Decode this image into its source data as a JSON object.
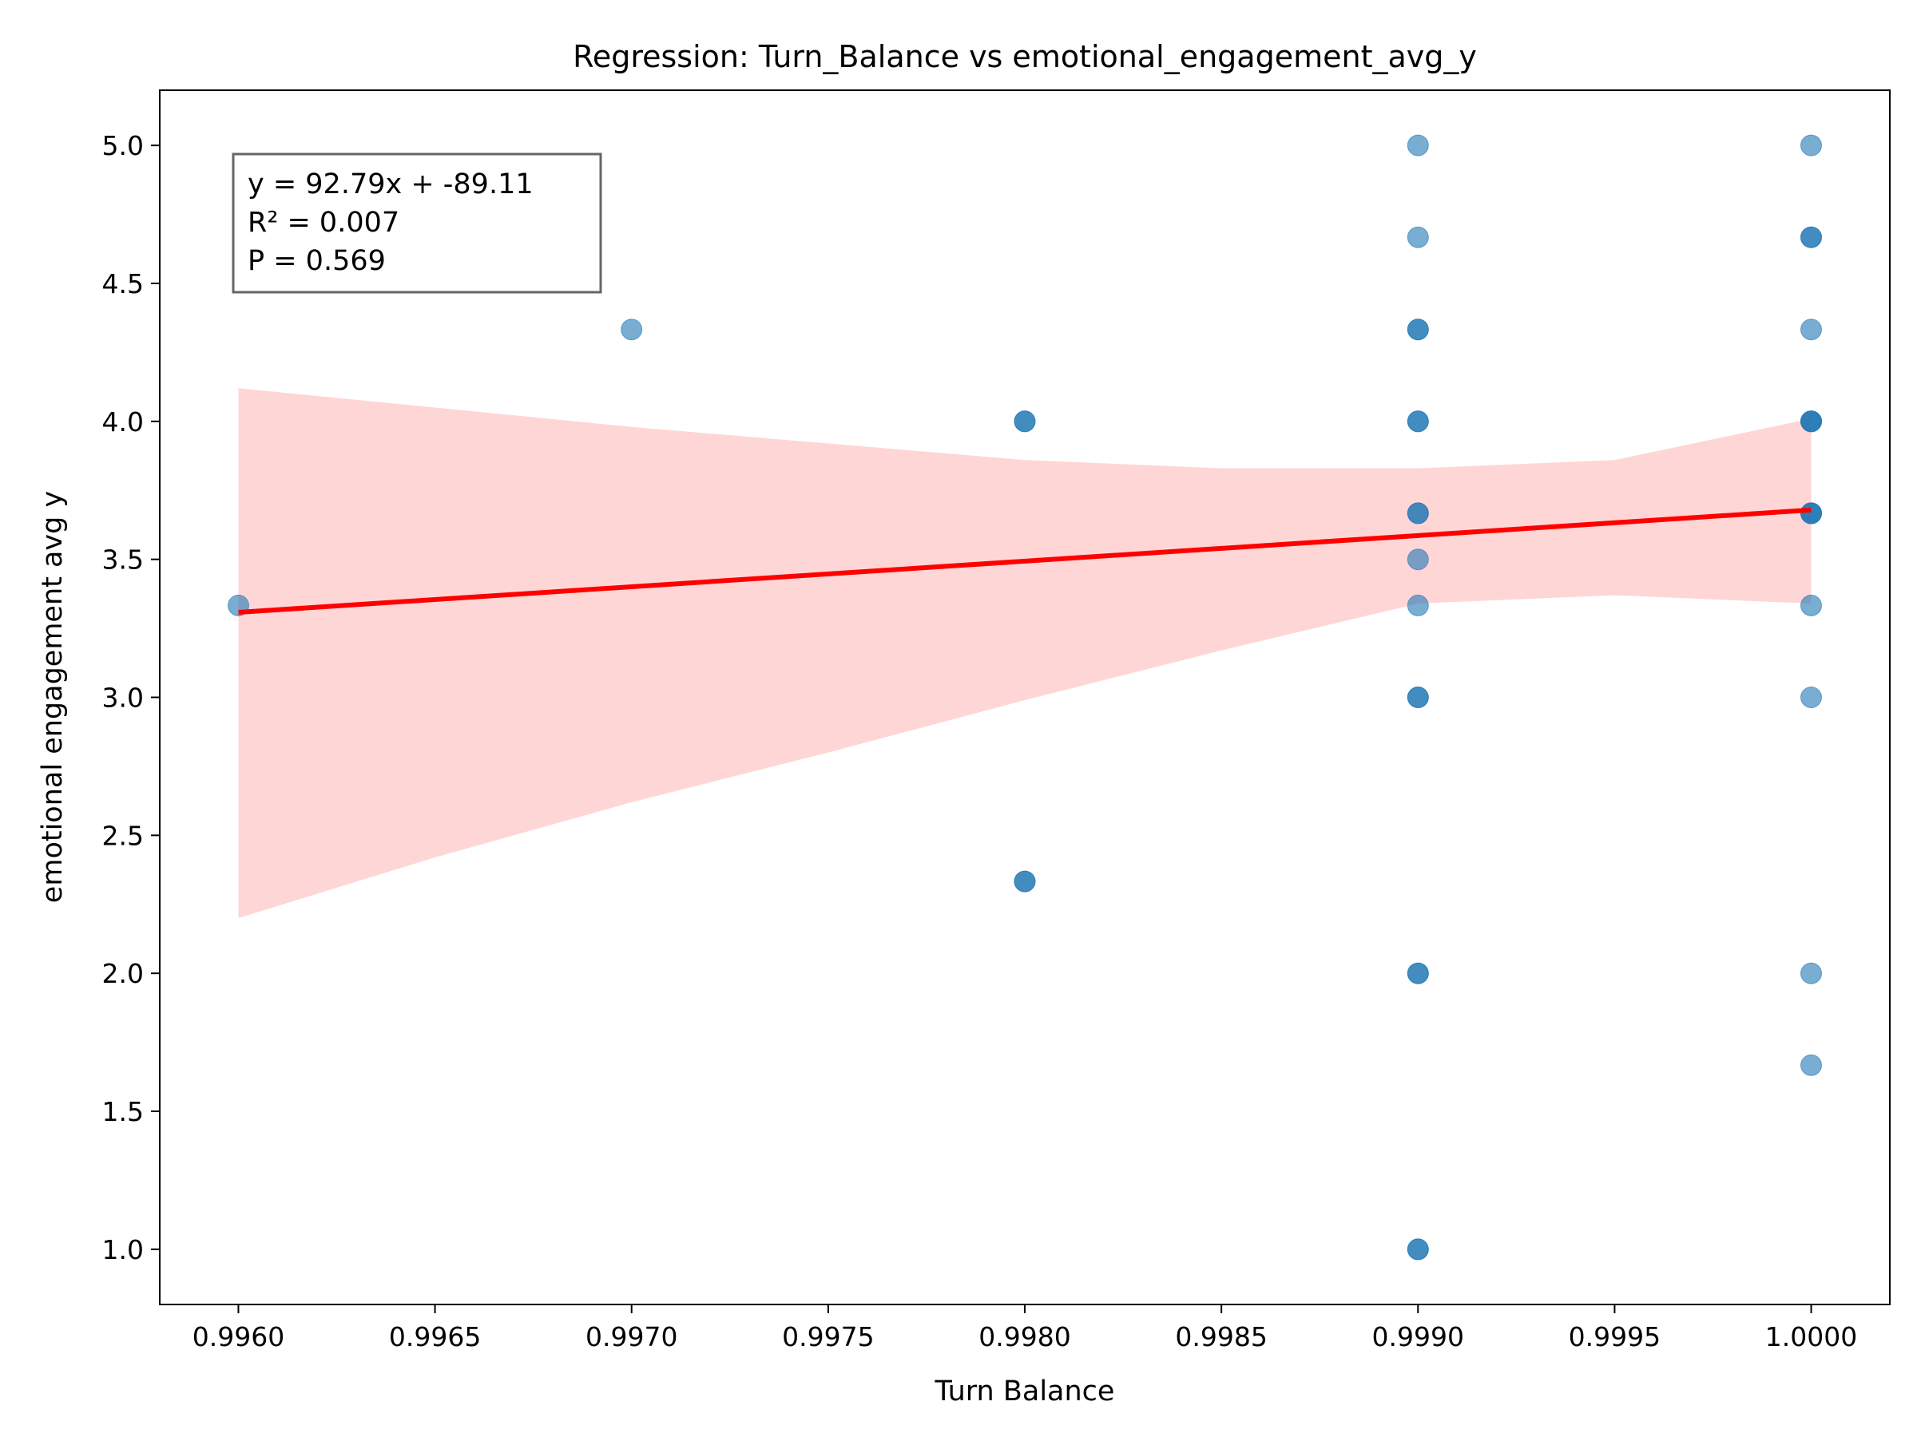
{
  "chart_data": {
    "type": "scatter",
    "title": "Regression: Turn_Balance vs emotional_engagement_avg_y",
    "xlabel": "Turn Balance",
    "ylabel": "emotional engagement avg y",
    "xlim": [
      0.9958,
      1.0002
    ],
    "ylim": [
      0.8,
      5.2
    ],
    "x_ticks": [
      "0.9960",
      "0.9965",
      "0.9970",
      "0.9975",
      "0.9980",
      "0.9985",
      "0.9990",
      "0.9995",
      "1.0000"
    ],
    "y_ticks": [
      "1.0",
      "1.5",
      "2.0",
      "2.5",
      "3.0",
      "3.5",
      "4.0",
      "4.5",
      "5.0"
    ],
    "grid": false,
    "annotation": {
      "lines": [
        "y = 92.79x + -89.11",
        "R² = 0.007",
        "P = 0.569"
      ]
    },
    "points": [
      {
        "x": 0.996,
        "y": 3.333
      },
      {
        "x": 0.997,
        "y": 4.333
      },
      {
        "x": 0.998,
        "y": 4.0
      },
      {
        "x": 0.998,
        "y": 4.0
      },
      {
        "x": 0.998,
        "y": 2.333
      },
      {
        "x": 0.998,
        "y": 2.333
      },
      {
        "x": 0.999,
        "y": 5.0
      },
      {
        "x": 0.999,
        "y": 4.667
      },
      {
        "x": 0.999,
        "y": 4.333
      },
      {
        "x": 0.999,
        "y": 4.333
      },
      {
        "x": 0.999,
        "y": 4.0
      },
      {
        "x": 0.999,
        "y": 4.0
      },
      {
        "x": 0.999,
        "y": 3.667
      },
      {
        "x": 0.999,
        "y": 3.667
      },
      {
        "x": 0.999,
        "y": 3.5
      },
      {
        "x": 0.999,
        "y": 3.333
      },
      {
        "x": 0.999,
        "y": 3.0
      },
      {
        "x": 0.999,
        "y": 3.0
      },
      {
        "x": 0.999,
        "y": 2.0
      },
      {
        "x": 0.999,
        "y": 2.0
      },
      {
        "x": 0.999,
        "y": 1.0
      },
      {
        "x": 0.999,
        "y": 1.0
      },
      {
        "x": 1.0,
        "y": 5.0
      },
      {
        "x": 1.0,
        "y": 4.667
      },
      {
        "x": 1.0,
        "y": 4.667
      },
      {
        "x": 1.0,
        "y": 4.333
      },
      {
        "x": 1.0,
        "y": 4.0
      },
      {
        "x": 1.0,
        "y": 4.0
      },
      {
        "x": 1.0,
        "y": 4.0
      },
      {
        "x": 1.0,
        "y": 3.667
      },
      {
        "x": 1.0,
        "y": 3.667
      },
      {
        "x": 1.0,
        "y": 3.667
      },
      {
        "x": 1.0,
        "y": 3.333
      },
      {
        "x": 1.0,
        "y": 3.0
      },
      {
        "x": 1.0,
        "y": 2.0
      },
      {
        "x": 1.0,
        "y": 1.667
      }
    ],
    "regression_line": {
      "x": [
        0.996,
        1.0
      ],
      "y": [
        3.308,
        3.679
      ]
    },
    "confidence_band": {
      "x": [
        0.996,
        0.9965,
        0.997,
        0.9975,
        0.998,
        0.9985,
        0.999,
        0.9995,
        1.0
      ],
      "upper": [
        4.12,
        4.05,
        3.98,
        3.92,
        3.86,
        3.83,
        3.83,
        3.86,
        4.01
      ],
      "lower": [
        2.2,
        2.42,
        2.62,
        2.8,
        2.99,
        3.17,
        3.34,
        3.37,
        3.34
      ]
    },
    "colors": {
      "points": "#1f77b4",
      "regression_line": "#ff0000",
      "confidence_band": "#ffd6d6",
      "annotation_border": "#666666"
    }
  }
}
